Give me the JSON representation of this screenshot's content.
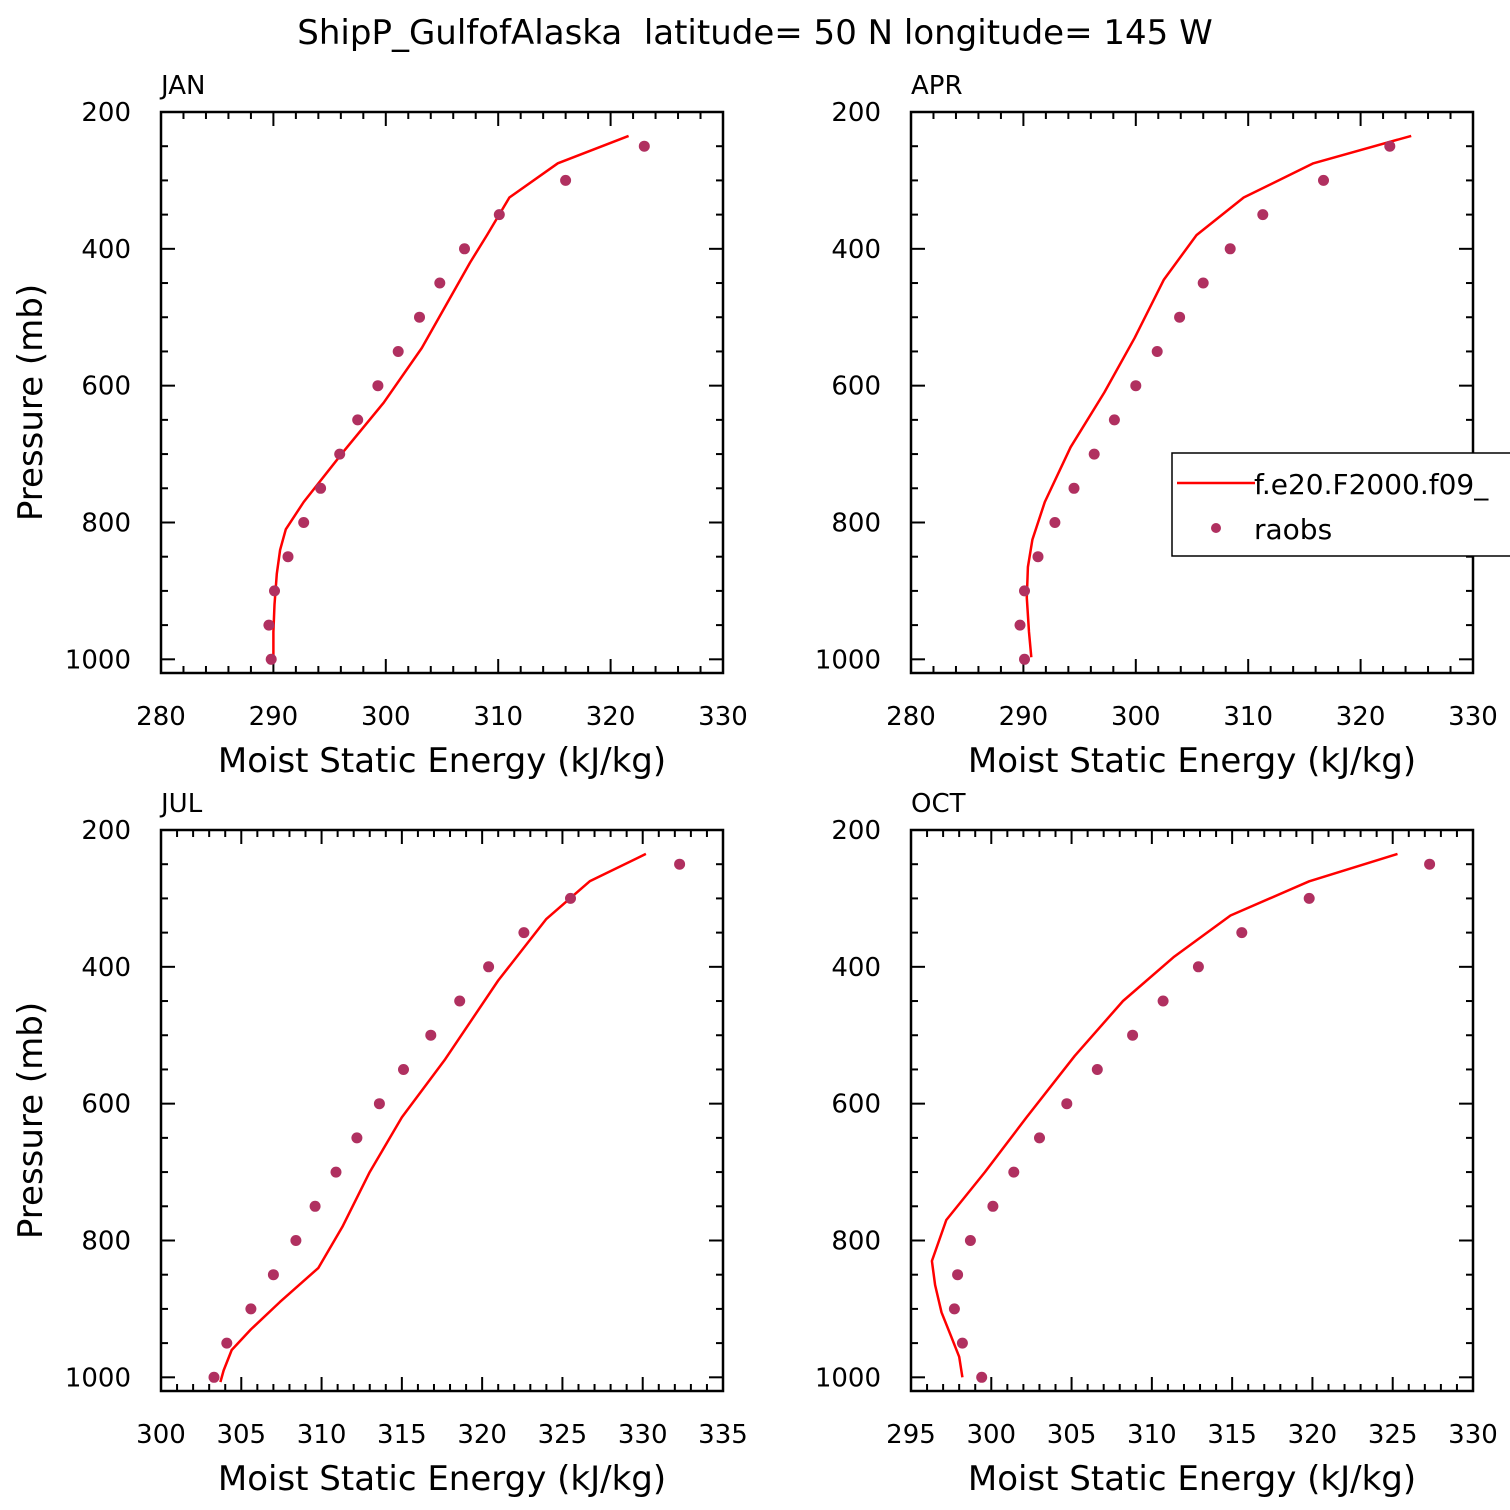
{
  "title": "ShipP_GulfofAlaska  latitude= 50 N longitude= 145 W",
  "colors": {
    "model": "#ff0000",
    "obs": "#b03060",
    "axis": "#000000"
  },
  "legend": {
    "placement": "right of APR panel",
    "model_label": "f.e20.F2000.f09_",
    "obs_label": "raobs"
  },
  "chart_data": [
    {
      "type": "line",
      "panel": "JAN",
      "xlabel": "Moist Static Energy (kJ/kg)",
      "ylabel": "Pressure (mb)",
      "xlim": [
        280,
        330
      ],
      "ylim": [
        1020,
        200
      ],
      "y_inverted": true,
      "xticks": [
        280,
        290,
        300,
        310,
        320,
        330
      ],
      "yticks": [
        200,
        400,
        600,
        800,
        1000
      ],
      "series": [
        {
          "name": "f.e20.F2000.f09_",
          "kind": "line",
          "x": [
            290.0,
            290.0,
            290.1,
            290.3,
            290.6,
            291.1,
            292.7,
            296.3,
            299.8,
            303.2,
            307.5,
            309.0,
            311.0,
            315.3,
            321.6
          ],
          "y": [
            1000,
            960,
            920,
            875,
            840,
            810,
            770,
            695,
            625,
            545,
            420,
            380,
            325,
            275,
            235
          ]
        },
        {
          "name": "raobs",
          "kind": "scatter",
          "x": [
            289.8,
            289.6,
            290.1,
            291.3,
            292.7,
            294.2,
            295.9,
            297.5,
            299.3,
            301.1,
            303.0,
            304.8,
            307.0,
            310.1,
            316.0,
            323.0
          ],
          "y": [
            1000,
            950,
            900,
            850,
            800,
            750,
            700,
            650,
            600,
            550,
            500,
            450,
            400,
            350,
            300,
            250
          ]
        }
      ]
    },
    {
      "type": "line",
      "panel": "APR",
      "xlabel": "Moist Static Energy (kJ/kg)",
      "ylabel": "",
      "xlim": [
        280,
        330
      ],
      "ylim": [
        1020,
        200
      ],
      "y_inverted": true,
      "xticks": [
        280,
        290,
        300,
        310,
        320,
        330
      ],
      "yticks": [
        200,
        400,
        600,
        800,
        1000
      ],
      "series": [
        {
          "name": "f.e20.F2000.f09_",
          "kind": "line",
          "x": [
            290.7,
            290.5,
            290.3,
            290.4,
            290.8,
            291.9,
            294.2,
            297.2,
            299.9,
            302.5,
            305.4,
            309.6,
            315.8,
            324.5
          ],
          "y": [
            997,
            960,
            910,
            865,
            825,
            770,
            690,
            610,
            530,
            445,
            380,
            325,
            275,
            235
          ]
        },
        {
          "name": "raobs",
          "kind": "scatter",
          "x": [
            290.1,
            289.7,
            290.1,
            291.3,
            292.8,
            294.5,
            296.3,
            298.1,
            300.0,
            301.9,
            303.9,
            306.0,
            308.4,
            311.3,
            316.7,
            322.6
          ],
          "y": [
            1000,
            950,
            900,
            850,
            800,
            750,
            700,
            650,
            600,
            550,
            500,
            450,
            400,
            350,
            300,
            250
          ]
        }
      ]
    },
    {
      "type": "line",
      "panel": "JUL",
      "xlabel": "Moist Static Energy (kJ/kg)",
      "ylabel": "Pressure (mb)",
      "xlim": [
        300,
        335
      ],
      "ylim": [
        1020,
        200
      ],
      "y_inverted": true,
      "xticks": [
        300,
        305,
        310,
        315,
        320,
        325,
        330,
        335
      ],
      "yticks": [
        200,
        400,
        600,
        800,
        1000
      ],
      "series": [
        {
          "name": "f.e20.F2000.f09_",
          "kind": "line",
          "x": [
            303.7,
            303.9,
            304.4,
            305.6,
            307.4,
            309.8,
            311.3,
            313.0,
            315.0,
            317.7,
            321.0,
            324.0,
            326.7,
            330.2
          ],
          "y": [
            1007,
            990,
            960,
            930,
            890,
            840,
            780,
            700,
            620,
            535,
            420,
            330,
            275,
            235
          ]
        },
        {
          "name": "raobs",
          "kind": "scatter",
          "x": [
            303.3,
            304.1,
            305.6,
            307.0,
            308.4,
            309.6,
            310.9,
            312.2,
            313.6,
            315.1,
            316.8,
            318.6,
            320.4,
            322.6,
            325.5,
            332.3
          ],
          "y": [
            1000,
            950,
            900,
            850,
            800,
            750,
            700,
            650,
            600,
            550,
            500,
            450,
            400,
            350,
            300,
            250
          ]
        }
      ]
    },
    {
      "type": "line",
      "panel": "OCT",
      "xlabel": "Moist Static Energy (kJ/kg)",
      "ylabel": "",
      "xlim": [
        295,
        330
      ],
      "ylim": [
        1020,
        200
      ],
      "y_inverted": true,
      "xticks": [
        295,
        300,
        305,
        310,
        315,
        320,
        325,
        330
      ],
      "yticks": [
        200,
        400,
        600,
        800,
        1000
      ],
      "series": [
        {
          "name": "f.e20.F2000.f09_",
          "kind": "line",
          "x": [
            298.2,
            298.0,
            297.5,
            296.9,
            296.5,
            296.3,
            297.2,
            299.6,
            302.2,
            305.2,
            308.2,
            311.4,
            314.9,
            319.8,
            325.3
          ],
          "y": [
            1000,
            970,
            940,
            905,
            865,
            830,
            770,
            700,
            620,
            530,
            450,
            385,
            325,
            275,
            235
          ]
        },
        {
          "name": "raobs",
          "kind": "scatter",
          "x": [
            299.4,
            298.2,
            297.7,
            297.9,
            298.7,
            300.1,
            301.4,
            303.0,
            304.7,
            306.6,
            308.8,
            310.7,
            312.9,
            315.6,
            319.8,
            327.3
          ],
          "y": [
            1000,
            950,
            900,
            850,
            800,
            750,
            700,
            650,
            600,
            550,
            500,
            450,
            400,
            350,
            300,
            250
          ]
        }
      ]
    }
  ]
}
